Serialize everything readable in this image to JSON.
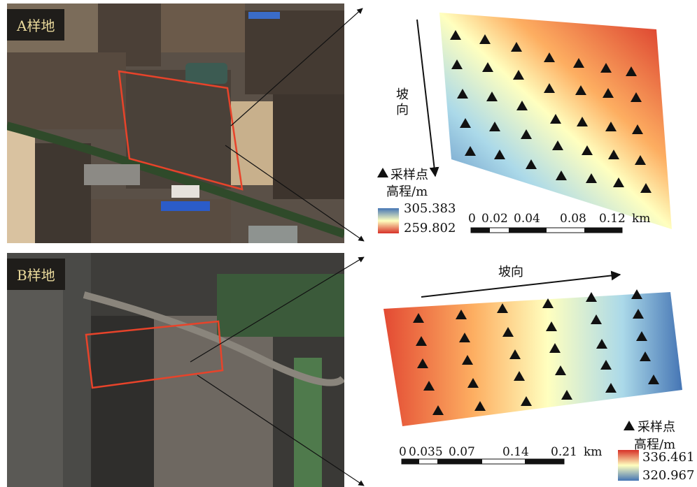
{
  "site_a": {
    "label": "A样地"
  },
  "site_b": {
    "label": "B样地"
  },
  "map_a": {
    "slope_label": "坡向",
    "legend": {
      "points": "采样点",
      "elevation_title": "高程/m",
      "max": "305.383",
      "min": "259.802"
    },
    "scale": {
      "ticks": [
        "0",
        "0.02",
        "0.04",
        "0.08",
        "0.12"
      ],
      "unit": "km"
    }
  },
  "map_b": {
    "slope_label": "坡向",
    "legend": {
      "points": "采样点",
      "elevation_title": "高程/m",
      "max": "336.461",
      "min": "320.967"
    },
    "scale": {
      "ticks": [
        "0",
        "0.035",
        "0.07",
        "0.14",
        "0.21"
      ],
      "unit": "km"
    }
  },
  "colors": {
    "red": "#d73027",
    "yellow": "#ffffbf",
    "blue": "#4575b4",
    "outline": "#e8432a",
    "label_bg": "#1f1d1a",
    "label_text": "#e9d99b"
  }
}
